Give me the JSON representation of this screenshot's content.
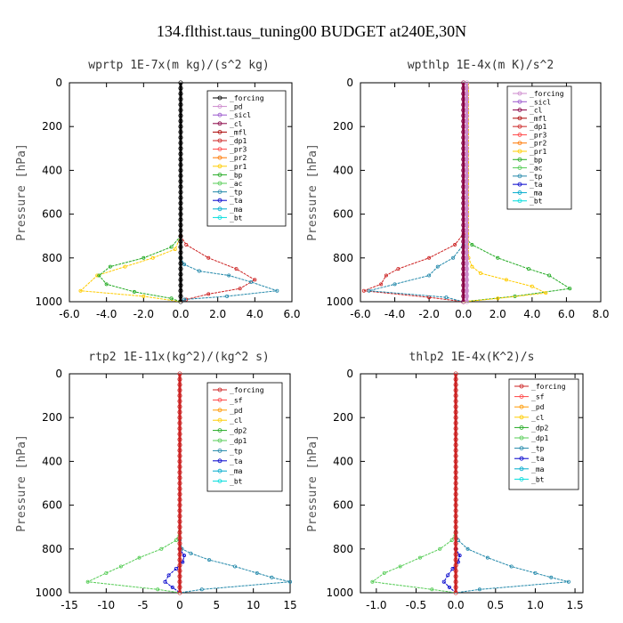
{
  "figure_title": "134.flthist.taus_tuning00  BUDGET at240E,30N",
  "chart_data": [
    {
      "type": "line",
      "title": "wprtp  1E-7x(m kg)/(s^2 kg)",
      "ylabel": "Pressure [hPa]",
      "xlim": [
        -6,
        6
      ],
      "ylim": [
        1000,
        0
      ],
      "xticks": [
        "-6.0",
        "-4.0",
        "-2.0",
        "0.0",
        "2.0",
        "4.0",
        "6.0"
      ],
      "xtick_values": [
        -6,
        -4,
        -2,
        0,
        2,
        4,
        6
      ],
      "yticks": [
        "0",
        "200",
        "400",
        "600",
        "800",
        "1000"
      ],
      "ytick_values": [
        0,
        200,
        400,
        600,
        800,
        1000
      ],
      "legend": [
        "_forcing",
        "_pd",
        "_sicl",
        "_cl",
        "_mfl",
        "_dp1",
        "_pr3",
        "_pr2",
        "_pr1",
        "_bp",
        "_ac",
        "_tp",
        "_ta",
        "_ma",
        "_bt"
      ],
      "legend_colors": [
        "#000000",
        "#cc88cc",
        "#9955cc",
        "#880044",
        "#aa0000",
        "#cc2222",
        "#ff4444",
        "#ff7700",
        "#ffcc00",
        "#22aa22",
        "#55cc55",
        "#2288aa",
        "#0000cc",
        "#00aacc",
        "#00dddd"
      ],
      "series": [
        {
          "name": "_pr2",
          "color": "#ffcc00",
          "x": [
            0,
            0,
            -0.3,
            -1.5,
            -3.0,
            -4.5,
            -5.4,
            -2.0,
            0
          ],
          "y": [
            0,
            700,
            760,
            800,
            840,
            880,
            950,
            975,
            1000
          ]
        },
        {
          "name": "_bp",
          "color": "#22aa22",
          "x": [
            0,
            0,
            -0.5,
            -2.0,
            -3.8,
            -4.4,
            -4.0,
            -2.5,
            -0.5,
            0
          ],
          "y": [
            0,
            700,
            750,
            800,
            840,
            880,
            920,
            955,
            985,
            1000
          ]
        },
        {
          "name": "_dp1",
          "color": "#cc2222",
          "x": [
            0,
            0,
            0.3,
            1.5,
            3.0,
            4.0,
            3.2,
            1.5,
            0.3,
            0
          ],
          "y": [
            0,
            700,
            740,
            800,
            850,
            900,
            940,
            965,
            990,
            1000
          ]
        },
        {
          "name": "_tp",
          "color": "#2288aa",
          "x": [
            0,
            0,
            0.2,
            1.0,
            2.6,
            3.8,
            5.2,
            2.5,
            0.2,
            0
          ],
          "y": [
            0,
            800,
            830,
            860,
            880,
            910,
            950,
            975,
            990,
            1000
          ]
        },
        {
          "name": "_forcing",
          "color": "#000000",
          "x": [
            0,
            0
          ],
          "y": [
            0,
            1000
          ]
        }
      ]
    },
    {
      "type": "line",
      "title": "wpthlp  1E-4x(m K)/s^2",
      "ylabel": "Pressure [hPa]",
      "xlim": [
        -6,
        8
      ],
      "ylim": [
        1000,
        0
      ],
      "xticks": [
        "-6.0",
        "-4.0",
        "-2.0",
        "0.0",
        "2.0",
        "4.0",
        "6.0",
        "8.0"
      ],
      "xtick_values": [
        -6,
        -4,
        -2,
        0,
        2,
        4,
        6,
        8
      ],
      "yticks": [
        "0",
        "200",
        "400",
        "600",
        "800",
        "1000"
      ],
      "ytick_values": [
        0,
        200,
        400,
        600,
        800,
        1000
      ],
      "legend": [
        "_forcing",
        "_sicl",
        "_cl",
        "_mfl",
        "_dp1",
        "_pr3",
        "_pr2",
        "_pr1",
        "_bp",
        "_ac",
        "_tp",
        "_ta",
        "_ma",
        "_bt"
      ],
      "legend_colors": [
        "#cc88cc",
        "#9955cc",
        "#880044",
        "#aa0000",
        "#cc2222",
        "#ff4444",
        "#ff7700",
        "#ffcc00",
        "#22aa22",
        "#55cc55",
        "#2288aa",
        "#0000cc",
        "#00aacc",
        "#00dddd"
      ],
      "series": [
        {
          "name": "_dp1",
          "color": "#cc2222",
          "x": [
            0,
            0,
            -0.5,
            -2.0,
            -3.8,
            -4.5,
            -4.8,
            -5.8,
            -2.0,
            0
          ],
          "y": [
            0,
            690,
            740,
            800,
            850,
            880,
            920,
            950,
            980,
            1000
          ]
        },
        {
          "name": "_tp",
          "color": "#2288aa",
          "x": [
            0,
            0,
            -0.6,
            -1.5,
            -2.0,
            -4.0,
            -5.5,
            -1.0,
            0
          ],
          "y": [
            0,
            740,
            800,
            840,
            880,
            920,
            950,
            980,
            1000
          ]
        },
        {
          "name": "_bp",
          "color": "#22aa22",
          "x": [
            0,
            0,
            0.5,
            2.0,
            3.8,
            5.0,
            6.2,
            3.0,
            0
          ],
          "y": [
            0,
            700,
            740,
            800,
            850,
            880,
            940,
            975,
            1000
          ]
        },
        {
          "name": "_pr1",
          "color": "#ffcc00",
          "x": [
            0.3,
            0.3,
            0.5,
            1.0,
            2.5,
            4.0,
            4.8,
            2.0,
            0
          ],
          "y": [
            0,
            800,
            840,
            870,
            900,
            930,
            960,
            985,
            1000
          ]
        },
        {
          "name": "_cl",
          "color": "#880044",
          "x": [
            0,
            0
          ],
          "y": [
            0,
            1000
          ]
        },
        {
          "name": "_forcing",
          "color": "#cc88cc",
          "x": [
            0.2,
            0.2
          ],
          "y": [
            0,
            1000
          ]
        }
      ]
    },
    {
      "type": "line",
      "title": "rtp2  1E-11x(kg^2)/(kg^2 s)",
      "ylabel": "Pressure [hPa]",
      "xlim": [
        -15,
        15
      ],
      "ylim": [
        1000,
        0
      ],
      "xticks": [
        "-15",
        "-10",
        "-5",
        "0",
        "5",
        "10",
        "15"
      ],
      "xtick_values": [
        -15,
        -10,
        -5,
        0,
        5,
        10,
        15
      ],
      "yticks": [
        "0",
        "200",
        "400",
        "600",
        "800",
        "1000"
      ],
      "ytick_values": [
        0,
        200,
        400,
        600,
        800,
        1000
      ],
      "legend": [
        "_forcing",
        "_sf",
        "_pd",
        "_cl",
        "_dp2",
        "_dp1",
        "_tp",
        "_ta",
        "_ma",
        "_bt"
      ],
      "legend_colors": [
        "#cc2222",
        "#ff4444",
        "#ff9900",
        "#ffcc00",
        "#22aa22",
        "#55cc55",
        "#2288aa",
        "#0000cc",
        "#00aacc",
        "#00dddd"
      ],
      "series": [
        {
          "name": "_dp1",
          "color": "#55cc55",
          "x": [
            0,
            0,
            -0.5,
            -2.5,
            -5.5,
            -8.0,
            -10.0,
            -12.5,
            -3.0,
            0
          ],
          "y": [
            0,
            720,
            760,
            800,
            840,
            880,
            910,
            950,
            985,
            1000
          ]
        },
        {
          "name": "_tp",
          "color": "#2288aa",
          "x": [
            0,
            0,
            0.3,
            1.5,
            4.0,
            7.5,
            10.5,
            12.5,
            15.0,
            3.0,
            0
          ],
          "y": [
            0,
            760,
            800,
            820,
            850,
            880,
            910,
            930,
            950,
            985,
            1000
          ]
        },
        {
          "name": "_ta",
          "color": "#0000cc",
          "x": [
            0,
            0,
            0.6,
            0.4,
            -0.5,
            -1.5,
            -2.0,
            -1.0,
            0
          ],
          "y": [
            0,
            800,
            830,
            860,
            890,
            920,
            950,
            975,
            1000
          ]
        },
        {
          "name": "_forcing",
          "color": "#cc2222",
          "x": [
            0,
            0
          ],
          "y": [
            0,
            1000
          ]
        }
      ]
    },
    {
      "type": "line",
      "title": "thlp2  1E-4x(K^2)/s",
      "ylabel": "Pressure [hPa]",
      "xlim": [
        -1.2,
        1.6
      ],
      "ylim": [
        1000,
        0
      ],
      "xticks": [
        "-1.0",
        "-0.5",
        "0.0",
        "0.5",
        "1.0",
        "1.5"
      ],
      "xtick_values": [
        -1.0,
        -0.5,
        0.0,
        0.5,
        1.0,
        1.5
      ],
      "yticks": [
        "0",
        "200",
        "400",
        "600",
        "800",
        "1000"
      ],
      "ytick_values": [
        0,
        200,
        400,
        600,
        800,
        1000
      ],
      "legend": [
        "_forcing",
        "_sf",
        "_pd",
        "_cl",
        "_dp2",
        "_dp1",
        "_tp",
        "_ta",
        "_ma",
        "_bt"
      ],
      "legend_colors": [
        "#cc2222",
        "#ff4444",
        "#ff9900",
        "#ffcc00",
        "#22aa22",
        "#55cc55",
        "#2288aa",
        "#0000cc",
        "#00aacc",
        "#00dddd"
      ],
      "series": [
        {
          "name": "_dp1",
          "color": "#55cc55",
          "x": [
            0,
            0,
            -0.05,
            -0.2,
            -0.45,
            -0.7,
            -0.9,
            -1.05,
            -0.3,
            0
          ],
          "y": [
            0,
            720,
            760,
            800,
            840,
            880,
            910,
            950,
            985,
            1000
          ]
        },
        {
          "name": "_tp",
          "color": "#2288aa",
          "x": [
            0,
            0,
            0.03,
            0.15,
            0.4,
            0.7,
            1.0,
            1.2,
            1.42,
            0.3,
            0
          ],
          "y": [
            0,
            720,
            760,
            800,
            840,
            880,
            910,
            930,
            950,
            985,
            1000
          ]
        },
        {
          "name": "_ta",
          "color": "#0000cc",
          "x": [
            0,
            0,
            0.05,
            0.03,
            -0.04,
            -0.1,
            -0.15,
            -0.08,
            0
          ],
          "y": [
            0,
            800,
            830,
            860,
            890,
            920,
            950,
            975,
            1000
          ]
        },
        {
          "name": "_forcing",
          "color": "#cc2222",
          "x": [
            0,
            0
          ],
          "y": [
            0,
            1000
          ]
        }
      ]
    }
  ]
}
